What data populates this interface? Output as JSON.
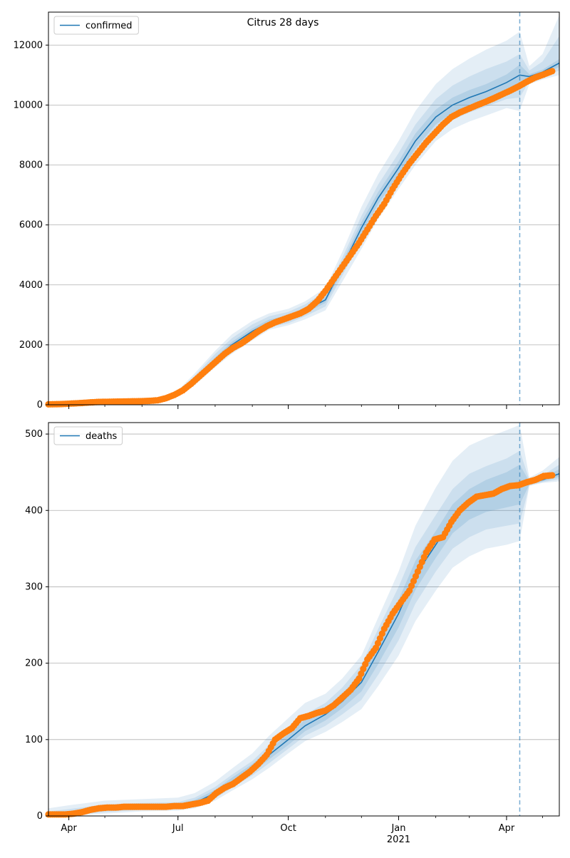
{
  "figure": {
    "title": "Citrus 28 days",
    "colors": {
      "model_line": "#1f77b4",
      "observed_points": "#ff7f0e",
      "band": "#1f77b4",
      "grid": "#b0b0b0",
      "forecast_marker": "#1f77b4"
    }
  },
  "chart_data": [
    {
      "type": "line",
      "panel": "top",
      "title": "Citrus 28 days",
      "legend": {
        "label": "confirmed",
        "placement": "top-left"
      },
      "xlabel": "",
      "ylabel": "",
      "x_ticks": [
        {
          "date": "2020-04-01",
          "label": "Apr",
          "sublabel": ""
        },
        {
          "date": "2020-07-01",
          "label": "Jul",
          "sublabel": ""
        },
        {
          "date": "2020-10-01",
          "label": "Oct",
          "sublabel": ""
        },
        {
          "date": "2021-01-01",
          "label": "Jan",
          "sublabel": "2021"
        },
        {
          "date": "2021-04-01",
          "label": "Apr",
          "sublabel": ""
        }
      ],
      "xlim": [
        "2020-03-15",
        "2021-05-15"
      ],
      "ylim": [
        0,
        13100
      ],
      "y_ticks": [
        0,
        2000,
        4000,
        6000,
        8000,
        10000,
        12000
      ],
      "grid": "horizontal",
      "forecast_start": "2021-04-12",
      "model": {
        "x": [
          "2020-03-15",
          "2020-04-01",
          "2020-05-01",
          "2020-06-01",
          "2020-06-15",
          "2020-07-01",
          "2020-07-15",
          "2020-08-01",
          "2020-08-15",
          "2020-09-01",
          "2020-09-15",
          "2020-10-01",
          "2020-10-15",
          "2020-11-01",
          "2020-11-15",
          "2020-12-01",
          "2020-12-15",
          "2021-01-01",
          "2021-01-15",
          "2021-02-01",
          "2021-02-15",
          "2021-03-01",
          "2021-03-15",
          "2021-04-01",
          "2021-04-12",
          "2021-04-20",
          "2021-05-01",
          "2021-05-15"
        ],
        "y": [
          20,
          40,
          90,
          120,
          160,
          380,
          850,
          1500,
          2000,
          2450,
          2750,
          2900,
          3150,
          3500,
          4600,
          5900,
          6900,
          7900,
          8800,
          9600,
          10000,
          10250,
          10450,
          10750,
          11000,
          10950,
          11100,
          11400
        ]
      },
      "bands": [
        {
          "name": "95%",
          "lower": [
            0,
            0,
            40,
            70,
            100,
            280,
            650,
            1250,
            1700,
            2150,
            2500,
            2650,
            2850,
            3150,
            4100,
            5200,
            6200,
            7200,
            8000,
            8800,
            9200,
            9450,
            9650,
            9900,
            9800,
            10700,
            10850,
            11000
          ],
          "upper": [
            60,
            90,
            150,
            190,
            240,
            480,
            1050,
            1800,
            2350,
            2800,
            3050,
            3200,
            3450,
            3900,
            5100,
            6600,
            7700,
            8800,
            9800,
            10700,
            11200,
            11550,
            11850,
            12150,
            12450,
            11300,
            11700,
            13000
          ]
        },
        {
          "name": "80%",
          "lower": [
            5,
            15,
            55,
            85,
            120,
            310,
            720,
            1330,
            1800,
            2250,
            2580,
            2720,
            2950,
            3280,
            4300,
            5500,
            6500,
            7450,
            8300,
            9100,
            9500,
            9750,
            9950,
            10200,
            10250,
            10800,
            10950,
            11150
          ],
          "upper": [
            40,
            70,
            125,
            160,
            205,
            440,
            970,
            1700,
            2220,
            2680,
            2950,
            3100,
            3350,
            3780,
            4900,
            6300,
            7350,
            8400,
            9350,
            10200,
            10650,
            10950,
            11200,
            11450,
            11700,
            11150,
            11450,
            12300
          ]
        },
        {
          "name": "50%",
          "lower": [
            12,
            28,
            70,
            100,
            140,
            345,
            790,
            1420,
            1900,
            2350,
            2660,
            2810,
            3050,
            3400,
            4450,
            5700,
            6700,
            7680,
            8550,
            9350,
            9750,
            10000,
            10200,
            10480,
            10650,
            10870,
            11020,
            11270
          ],
          "upper": [
            28,
            52,
            108,
            140,
            180,
            415,
            910,
            1580,
            2100,
            2550,
            2840,
            2990,
            3250,
            3600,
            4750,
            6100,
            7100,
            8120,
            9050,
            9850,
            10250,
            10500,
            10700,
            11020,
            11350,
            11030,
            11180,
            11530
          ]
        }
      ],
      "observed": {
        "x": [
          "2020-03-15",
          "2020-03-22",
          "2020-03-29",
          "2020-04-05",
          "2020-04-12",
          "2020-04-19",
          "2020-04-26",
          "2020-05-03",
          "2020-05-10",
          "2020-05-17",
          "2020-05-24",
          "2020-05-31",
          "2020-06-07",
          "2020-06-14",
          "2020-06-21",
          "2020-06-28",
          "2020-07-05",
          "2020-07-12",
          "2020-07-19",
          "2020-07-26",
          "2020-08-02",
          "2020-08-09",
          "2020-08-16",
          "2020-08-23",
          "2020-08-30",
          "2020-09-06",
          "2020-09-13",
          "2020-09-20",
          "2020-09-27",
          "2020-10-04",
          "2020-10-11",
          "2020-10-18",
          "2020-10-25",
          "2020-11-01",
          "2020-11-08",
          "2020-11-15",
          "2020-11-22",
          "2020-11-29",
          "2020-12-06",
          "2020-12-13",
          "2020-12-20",
          "2020-12-27",
          "2021-01-03",
          "2021-01-10",
          "2021-01-17",
          "2021-01-24",
          "2021-01-31",
          "2021-02-07",
          "2021-02-14",
          "2021-02-21",
          "2021-02-28",
          "2021-03-07",
          "2021-03-14",
          "2021-03-21",
          "2021-03-28",
          "2021-04-04",
          "2021-04-11",
          "2021-04-18",
          "2021-04-25",
          "2021-05-02",
          "2021-05-09"
        ],
        "y": [
          15,
          20,
          30,
          45,
          60,
          80,
          95,
          100,
          105,
          110,
          115,
          120,
          130,
          150,
          220,
          330,
          480,
          700,
          950,
          1200,
          1450,
          1700,
          1900,
          2050,
          2250,
          2450,
          2620,
          2750,
          2850,
          2950,
          3050,
          3200,
          3450,
          3800,
          4200,
          4600,
          5000,
          5400,
          5850,
          6300,
          6700,
          7200,
          7650,
          8050,
          8400,
          8750,
          9050,
          9350,
          9600,
          9750,
          9870,
          9990,
          10100,
          10220,
          10350,
          10480,
          10620,
          10780,
          10920,
          11020,
          11130
        ]
      }
    },
    {
      "type": "line",
      "panel": "bottom",
      "legend": {
        "label": "deaths",
        "placement": "top-left"
      },
      "xlabel": "",
      "ylabel": "",
      "x_ticks": [
        {
          "date": "2020-04-01",
          "label": "Apr",
          "sublabel": ""
        },
        {
          "date": "2020-07-01",
          "label": "Jul",
          "sublabel": ""
        },
        {
          "date": "2020-10-01",
          "label": "Oct",
          "sublabel": ""
        },
        {
          "date": "2021-01-01",
          "label": "Jan",
          "sublabel": "2021"
        },
        {
          "date": "2021-04-01",
          "label": "Apr",
          "sublabel": ""
        }
      ],
      "xlim": [
        "2020-03-15",
        "2021-05-15"
      ],
      "ylim": [
        0,
        515
      ],
      "y_ticks": [
        0,
        100,
        200,
        300,
        400,
        500
      ],
      "grid": "horizontal",
      "forecast_start": "2021-04-12",
      "model": {
        "x": [
          "2020-03-15",
          "2020-04-01",
          "2020-05-01",
          "2020-06-01",
          "2020-07-01",
          "2020-07-15",
          "2020-08-01",
          "2020-08-15",
          "2020-09-01",
          "2020-09-15",
          "2020-10-01",
          "2020-10-15",
          "2020-11-01",
          "2020-11-15",
          "2020-12-01",
          "2020-12-15",
          "2021-01-01",
          "2021-01-15",
          "2021-02-01",
          "2021-02-15",
          "2021-03-01",
          "2021-03-15",
          "2021-04-01",
          "2021-04-12",
          "2021-04-20",
          "2021-05-01",
          "2021-05-15"
        ],
        "y": [
          2,
          4,
          10,
          12,
          13,
          17,
          30,
          45,
          62,
          80,
          100,
          118,
          133,
          150,
          175,
          215,
          265,
          315,
          355,
          390,
          410,
          420,
          428,
          435,
          436,
          440,
          448
        ]
      },
      "bands": [
        {
          "name": "95%",
          "lower": [
            0,
            0,
            3,
            6,
            7,
            10,
            20,
            33,
            48,
            63,
            82,
            98,
            110,
            123,
            140,
            170,
            210,
            255,
            295,
            325,
            340,
            350,
            355,
            360,
            432,
            436,
            438
          ],
          "upper": [
            10,
            14,
            20,
            22,
            24,
            30,
            45,
            62,
            82,
            105,
            128,
            148,
            160,
            180,
            210,
            260,
            320,
            380,
            430,
            465,
            485,
            495,
            505,
            512,
            443,
            452,
            470
          ]
        },
        {
          "name": "80%",
          "lower": [
            0,
            1,
            5,
            8,
            9,
            12,
            23,
            37,
            53,
            69,
            88,
            105,
            118,
            133,
            152,
            185,
            230,
            278,
            320,
            350,
            365,
            375,
            380,
            383,
            433,
            437,
            441
          ],
          "upper": [
            6,
            9,
            15,
            17,
            18,
            24,
            38,
            54,
            72,
            93,
            114,
            133,
            148,
            168,
            198,
            245,
            300,
            352,
            394,
            428,
            448,
            458,
            468,
            478,
            440,
            446,
            460
          ]
        },
        {
          "name": "50%",
          "lower": [
            1,
            2,
            7,
            10,
            11,
            14,
            26,
            41,
            57,
            74,
            93,
            111,
            125,
            141,
            163,
            199,
            247,
            296,
            338,
            370,
            388,
            398,
            404,
            408,
            434,
            438,
            444
          ],
          "upper": [
            4,
            6,
            13,
            15,
            16,
            21,
            34,
            50,
            68,
            87,
            107,
            126,
            141,
            160,
            187,
            231,
            283,
            334,
            373,
            408,
            428,
            440,
            450,
            460,
            438,
            443,
            454
          ]
        }
      ],
      "observed": {
        "x": [
          "2020-03-15",
          "2020-03-22",
          "2020-03-29",
          "2020-04-05",
          "2020-04-12",
          "2020-04-19",
          "2020-04-26",
          "2020-05-03",
          "2020-05-10",
          "2020-05-17",
          "2020-05-24",
          "2020-05-31",
          "2020-06-07",
          "2020-06-14",
          "2020-06-21",
          "2020-06-28",
          "2020-07-05",
          "2020-07-12",
          "2020-07-19",
          "2020-07-26",
          "2020-08-02",
          "2020-08-09",
          "2020-08-16",
          "2020-08-23",
          "2020-08-30",
          "2020-09-06",
          "2020-09-13",
          "2020-09-20",
          "2020-09-27",
          "2020-10-04",
          "2020-10-11",
          "2020-10-18",
          "2020-10-25",
          "2020-11-01",
          "2020-11-08",
          "2020-11-15",
          "2020-11-22",
          "2020-11-29",
          "2020-12-06",
          "2020-12-13",
          "2020-12-20",
          "2020-12-27",
          "2021-01-03",
          "2021-01-10",
          "2021-01-17",
          "2021-01-24",
          "2021-01-31",
          "2021-02-07",
          "2021-02-14",
          "2021-02-21",
          "2021-02-28",
          "2021-03-07",
          "2021-03-14",
          "2021-03-21",
          "2021-03-28",
          "2021-04-04",
          "2021-04-11",
          "2021-04-18",
          "2021-04-25",
          "2021-05-02",
          "2021-05-09"
        ],
        "y": [
          2,
          2,
          2,
          3,
          5,
          8,
          10,
          11,
          11,
          12,
          12,
          12,
          12,
          12,
          12,
          13,
          13,
          15,
          17,
          20,
          30,
          37,
          42,
          50,
          58,
          68,
          80,
          100,
          108,
          115,
          128,
          131,
          135,
          138,
          145,
          155,
          165,
          180,
          205,
          220,
          245,
          265,
          280,
          295,
          320,
          345,
          362,
          365,
          385,
          400,
          410,
          418,
          420,
          422,
          428,
          432,
          433,
          437,
          440,
          445,
          446
        ]
      }
    }
  ]
}
